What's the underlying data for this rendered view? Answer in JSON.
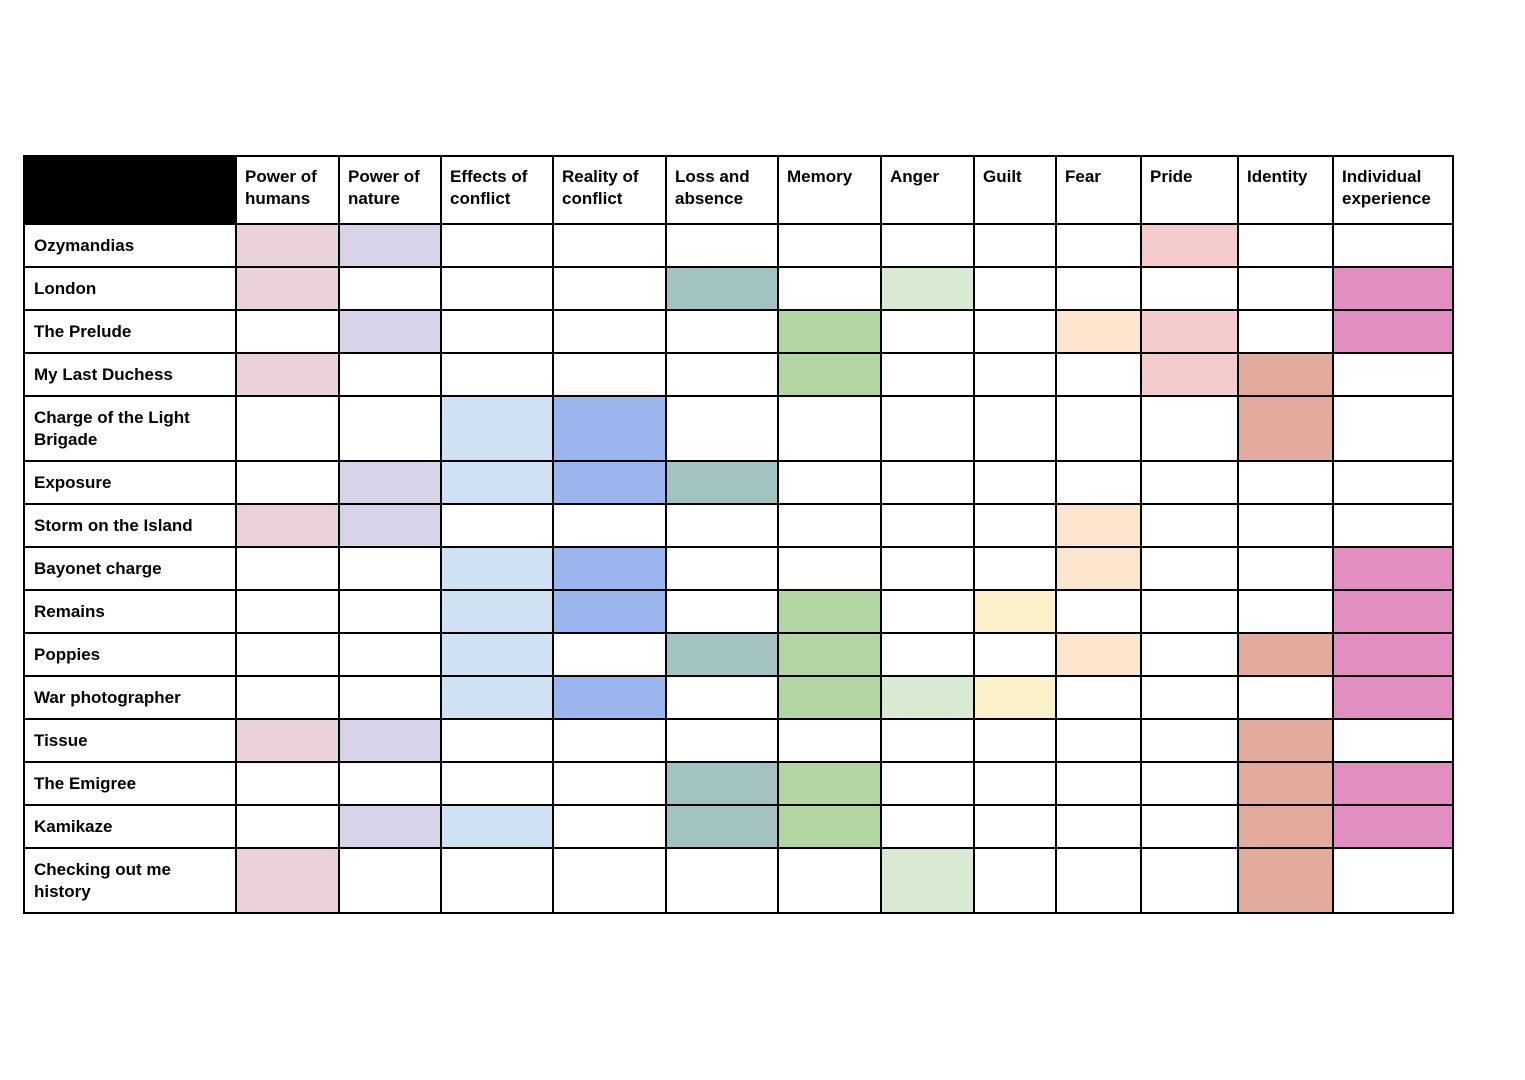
{
  "page": {
    "background": "#ffffff"
  },
  "table": {
    "corner": {
      "background": "#000000"
    },
    "columns": [
      {
        "label": "Power of humans",
        "color": "#ead1dc"
      },
      {
        "label": "Power of nature",
        "color": "#d9d3e9"
      },
      {
        "label": "Effects of conflict",
        "color": "#cfe2f3"
      },
      {
        "label": "Reality of conflict",
        "color": "#9bb5ee"
      },
      {
        "label": "Loss and absence",
        "color": "#a3c2c2"
      },
      {
        "label": "Memory",
        "color": "#b3d5a2"
      },
      {
        "label": "Anger",
        "color": "#d9ead3"
      },
      {
        "label": "Guilt",
        "color": "#fbf0c7"
      },
      {
        "label": "Fear",
        "color": "#fce5cd"
      },
      {
        "label": "Pride",
        "color": "#f5cccc"
      },
      {
        "label": "Identity",
        "color": "#e3ab9d"
      },
      {
        "label": "Individual experience",
        "color": "#e28ec0"
      }
    ],
    "rows": [
      {
        "poem": "Ozymandias",
        "themes": [
          "Power of humans",
          "Power of nature",
          "Pride"
        ]
      },
      {
        "poem": "London",
        "themes": [
          "Power of humans",
          "Loss and absence",
          "Anger",
          "Individual experience"
        ]
      },
      {
        "poem": "The Prelude",
        "themes": [
          "Power of nature",
          "Memory",
          "Fear",
          "Pride",
          "Individual experience"
        ]
      },
      {
        "poem": "My Last Duchess",
        "themes": [
          "Power of humans",
          "Memory",
          "Pride",
          "Identity"
        ]
      },
      {
        "poem": "Charge of the Light Brigade",
        "themes": [
          "Effects of conflict",
          "Reality of conflict",
          "Identity"
        ]
      },
      {
        "poem": "Exposure",
        "themes": [
          "Power of nature",
          "Effects of conflict",
          "Reality of conflict",
          "Loss and absence"
        ]
      },
      {
        "poem": "Storm on the Island",
        "themes": [
          "Power of humans",
          "Power of nature",
          "Fear"
        ]
      },
      {
        "poem": "Bayonet charge",
        "themes": [
          "Effects of conflict",
          "Reality of conflict",
          "Fear",
          "Individual experience"
        ]
      },
      {
        "poem": "Remains",
        "themes": [
          "Effects of conflict",
          "Reality of conflict",
          "Memory",
          "Guilt",
          "Individual experience"
        ]
      },
      {
        "poem": "Poppies",
        "themes": [
          "Effects of conflict",
          "Loss and absence",
          "Memory",
          "Fear",
          "Identity",
          "Individual experience"
        ]
      },
      {
        "poem": "War photographer",
        "themes": [
          "Effects of conflict",
          "Reality of conflict",
          "Memory",
          "Anger",
          "Guilt",
          "Individual experience"
        ]
      },
      {
        "poem": "Tissue",
        "themes": [
          "Power of humans",
          "Power of nature",
          "Identity"
        ]
      },
      {
        "poem": "The Emigree",
        "themes": [
          "Loss and absence",
          "Memory",
          "Identity",
          "Individual experience"
        ]
      },
      {
        "poem": "Kamikaze",
        "themes": [
          "Power of nature",
          "Effects of conflict",
          "Loss and absence",
          "Memory",
          "Identity",
          "Individual experience"
        ]
      },
      {
        "poem": "Checking out me history",
        "themes": [
          "Power of humans",
          "Anger",
          "Identity"
        ]
      }
    ]
  }
}
